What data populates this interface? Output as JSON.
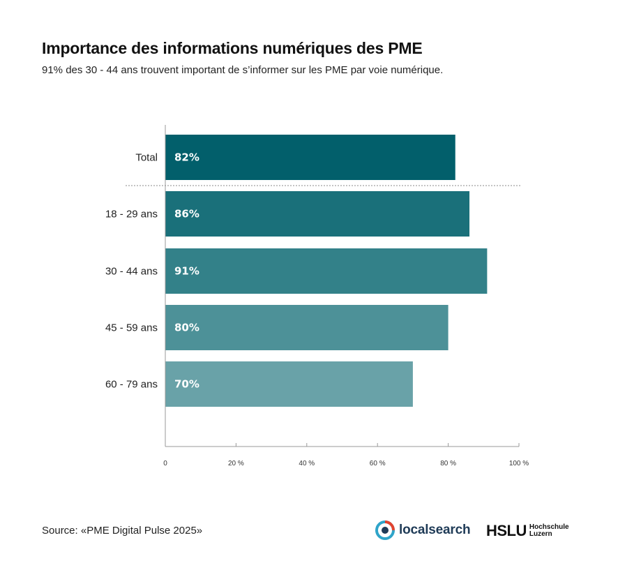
{
  "header": {
    "title": "Importance des informations numériques des PME",
    "subtitle": "91% des 30 - 44 ans trouvent important de s’informer sur les PME par voie numérique."
  },
  "chart_data": {
    "type": "bar",
    "orientation": "horizontal",
    "title": "Importance des informations numériques des PME",
    "subtitle": "91% des 30 - 44 ans trouvent important de s’informer sur les PME par voie numérique.",
    "categories": [
      "Total",
      "18 - 29 ans",
      "30 - 44 ans",
      "45 - 59 ans",
      "60 - 79 ans"
    ],
    "values": [
      82,
      86,
      91,
      80,
      70
    ],
    "value_labels": [
      "82%",
      "86%",
      "91%",
      "80%",
      "70%"
    ],
    "colors": [
      "#025f6b",
      "#1a707a",
      "#338189",
      "#4d9198",
      "#69a2a8"
    ],
    "xlim": [
      0,
      100
    ],
    "x_ticks": [
      0,
      20,
      40,
      60,
      80,
      100
    ],
    "x_tick_labels": [
      "0",
      "20 %",
      "40 %",
      "60 %",
      "80 %",
      "100 %"
    ],
    "separator_after": "Total",
    "grid": false,
    "legend": "none"
  },
  "footer": {
    "source": "Source: «PME Digital Pulse 2025»",
    "logo_localsearch": "localsearch",
    "logo_hslu": "HSLU",
    "logo_hslu_sub1": "Hochschule",
    "logo_hslu_sub2": "Luzern"
  }
}
